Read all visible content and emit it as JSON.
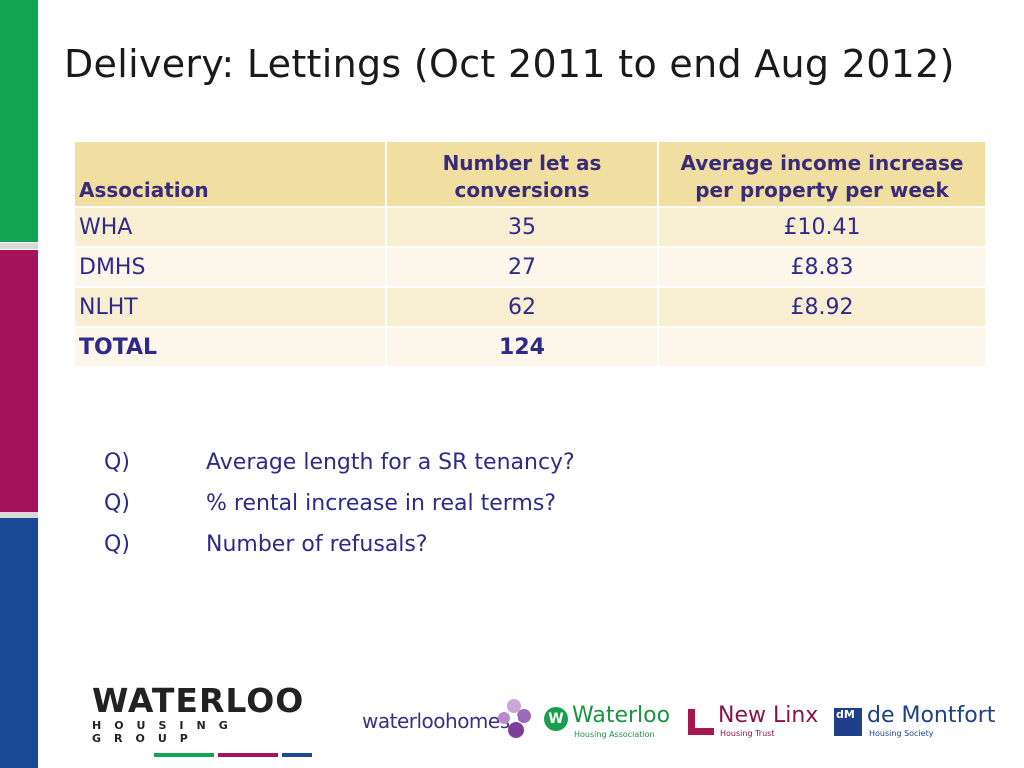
{
  "title": "Delivery: Lettings (Oct 2011 to end Aug 2012)",
  "colors": {
    "strip_green": "#12a652",
    "strip_magenta": "#a3125a",
    "strip_blue": "#1a4a96",
    "header_bg": "#f1dfa1",
    "text_blue": "#2f2a8a"
  },
  "table": {
    "headers": [
      "Association",
      "Number let as conversions",
      "Average income increase per property per week"
    ],
    "rows": [
      {
        "association": "WHA",
        "number": "35",
        "income": "£10.41"
      },
      {
        "association": "DMHS",
        "number": "27",
        "income": "£8.83"
      },
      {
        "association": "NLHT",
        "number": "62",
        "income": "£8.92"
      }
    ],
    "total": {
      "label": "TOTAL",
      "number": "124",
      "income": ""
    }
  },
  "questions": [
    {
      "label": "Q)",
      "text": "Average length for a SR tenancy?"
    },
    {
      "label": "Q)",
      "text": "% rental increase in real terms?"
    },
    {
      "label": "Q)",
      "text": "Number of refusals?"
    }
  ],
  "footer": {
    "group_logo": {
      "main": "WATERLOO",
      "sub": "HOUSING GROUP"
    },
    "waterloo_homes": {
      "text": "waterloohomes"
    },
    "waterloo_ha": {
      "mark": "W",
      "name": "Waterloo",
      "sub": "Housing Association"
    },
    "new_linx": {
      "name": "New Linx",
      "sub": "Housing Trust"
    },
    "de_montfort": {
      "mark": "dM",
      "name": "de Montfort",
      "sub": "Housing Society"
    }
  }
}
